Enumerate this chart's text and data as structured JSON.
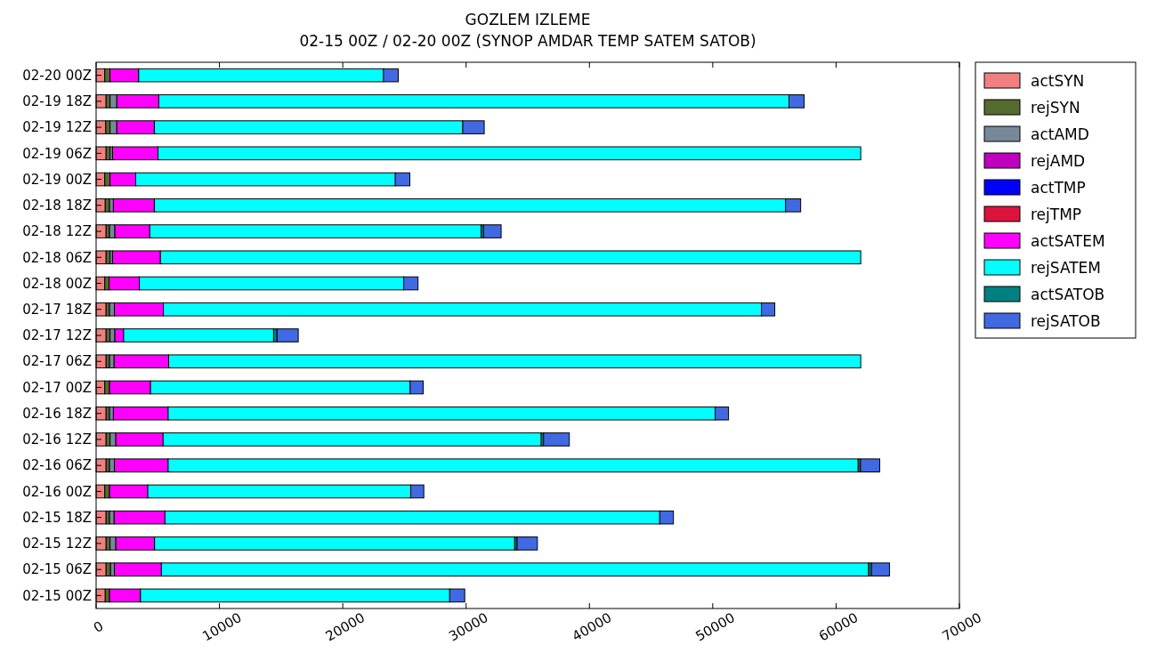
{
  "chart_data": {
    "type": "bar",
    "orientation": "horizontal",
    "stacked": true,
    "title": "GOZLEM IZLEME",
    "subtitle": "02-15 00Z / 02-20 00Z (SYNOP AMDAR TEMP SATEM SATOB)",
    "categories": [
      "02-20 00Z",
      "02-19 18Z",
      "02-19 12Z",
      "02-19 06Z",
      "02-19 00Z",
      "02-18 18Z",
      "02-18 12Z",
      "02-18 06Z",
      "02-18 00Z",
      "02-17 18Z",
      "02-17 12Z",
      "02-17 06Z",
      "02-17 00Z",
      "02-16 18Z",
      "02-16 12Z",
      "02-16 06Z",
      "02-16 00Z",
      "02-15 18Z",
      "02-15 12Z",
      "02-15 06Z",
      "02-15 00Z"
    ],
    "series": [
      {
        "name": "actSYN",
        "color": "#f08080",
        "values": [
          700,
          810,
          780,
          810,
          700,
          740,
          810,
          810,
          700,
          810,
          810,
          810,
          700,
          810,
          810,
          810,
          700,
          810,
          810,
          810,
          740
        ]
      },
      {
        "name": "rejSYN",
        "color": "#556b2f",
        "values": [
          430,
          320,
          350,
          320,
          430,
          350,
          280,
          320,
          350,
          280,
          320,
          280,
          390,
          280,
          320,
          280,
          390,
          280,
          320,
          360,
          350
        ]
      },
      {
        "name": "actAMD",
        "color": "#778899",
        "values": [
          0,
          550,
          550,
          200,
          0,
          310,
          430,
          200,
          0,
          390,
          390,
          370,
          0,
          310,
          470,
          390,
          0,
          370,
          470,
          310,
          0
        ]
      },
      {
        "name": "rejAMD",
        "color": "#bf00bf",
        "values": [
          0,
          0,
          0,
          0,
          0,
          0,
          0,
          0,
          0,
          0,
          0,
          0,
          0,
          0,
          0,
          0,
          0,
          0,
          0,
          0,
          0
        ]
      },
      {
        "name": "actTMP",
        "color": "#0000ff",
        "values": [
          0,
          0,
          0,
          0,
          0,
          0,
          0,
          0,
          0,
          0,
          0,
          0,
          0,
          0,
          0,
          0,
          0,
          0,
          0,
          0,
          0
        ]
      },
      {
        "name": "rejTMP",
        "color": "#dc143c",
        "values": [
          0,
          0,
          0,
          0,
          0,
          0,
          0,
          0,
          0,
          0,
          0,
          0,
          0,
          0,
          0,
          0,
          0,
          0,
          0,
          0,
          0
        ]
      },
      {
        "name": "actSATEM",
        "color": "#ff00ff",
        "values": [
          2320,
          3400,
          3040,
          3690,
          2080,
          3320,
          2830,
          3880,
          2450,
          3970,
          710,
          4420,
          3320,
          4440,
          3830,
          4360,
          3100,
          4120,
          3140,
          3810,
          2510
        ]
      },
      {
        "name": "rejSATEM",
        "color": "#00ffff",
        "values": [
          19850,
          51100,
          25010,
          56980,
          21050,
          51180,
          26860,
          56790,
          21440,
          48500,
          12160,
          56120,
          21050,
          44360,
          30660,
          55950,
          21320,
          40120,
          29200,
          57350,
          25070
        ]
      },
      {
        "name": "actSATOB",
        "color": "#008080",
        "values": [
          0,
          0,
          0,
          null,
          0,
          0,
          200,
          null,
          0,
          0,
          280,
          null,
          0,
          0,
          190,
          190,
          0,
          0,
          190,
          230,
          0
        ]
      },
      {
        "name": "rejSATOB",
        "color": "#4169e1",
        "values": [
          1200,
          1230,
          1740,
          null,
          1180,
          1230,
          1430,
          null,
          1160,
          1080,
          1720,
          null,
          1060,
          1080,
          2090,
          1560,
          1060,
          1110,
          1650,
          1460,
          1220
        ]
      }
    ],
    "xlim": [
      0,
      70000
    ],
    "xticks": [
      0,
      10000,
      20000,
      30000,
      40000,
      50000,
      60000,
      70000
    ],
    "legend": "top right"
  }
}
